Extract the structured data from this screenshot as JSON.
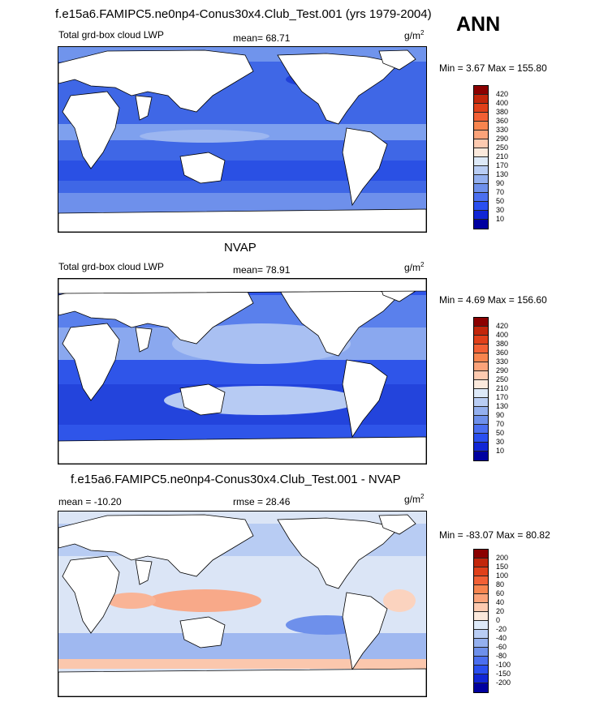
{
  "season": "ANN",
  "panels": [
    {
      "title": "f.e15a6.FAMIPC5.ne0np4-Conus30x4.Club_Test.001 (yrs 1979-2004)",
      "left_label": "Total grd-box cloud LWP",
      "stat_label": "mean=  68.71",
      "units": "g/m",
      "units_exp": "2",
      "minmax": "Min =   3.67 Max = 155.80",
      "colorbar_labels": [
        "420",
        "400",
        "380",
        "360",
        "330",
        "290",
        "250",
        "210",
        "170",
        "130",
        "90",
        "70",
        "50",
        "30",
        "10"
      ],
      "colorbar_colors": [
        "#8b0000",
        "#c2260b",
        "#e0401a",
        "#f26035",
        "#f7854f",
        "#fba37a",
        "#fdcab0",
        "#fbe9dc",
        "#dde9f8",
        "#b9cdf4",
        "#94b0ef",
        "#6e90eb",
        "#4b6ff0",
        "#2a4ff0",
        "#1126d6",
        "#0000a0"
      ]
    },
    {
      "title": "NVAP",
      "left_label": "Total grd-box cloud LWP",
      "stat_label": "mean=  78.91",
      "units": "g/m",
      "units_exp": "2",
      "minmax": "Min =   4.69 Max = 156.60",
      "colorbar_labels": [
        "420",
        "400",
        "380",
        "360",
        "330",
        "290",
        "250",
        "210",
        "170",
        "130",
        "90",
        "70",
        "50",
        "30",
        "10"
      ],
      "colorbar_colors": [
        "#8b0000",
        "#c2260b",
        "#e0401a",
        "#f26035",
        "#f7854f",
        "#fba37a",
        "#fdcab0",
        "#fbe9dc",
        "#dde9f8",
        "#b9cdf4",
        "#94b0ef",
        "#6e90eb",
        "#4b6ff0",
        "#2a4ff0",
        "#1126d6",
        "#0000a0"
      ]
    },
    {
      "title": "f.e15a6.FAMIPC5.ne0np4-Conus30x4.Club_Test.001 - NVAP",
      "left_label": "mean = -10.20",
      "stat_label": "rmse =  28.46",
      "units": "g/m",
      "units_exp": "2",
      "minmax": "Min = -83.07 Max =  80.82",
      "colorbar_labels": [
        "200",
        "150",
        "100",
        "80",
        "60",
        "40",
        "20",
        "0",
        "-20",
        "-40",
        "-60",
        "-80",
        "-100",
        "-150",
        "-200"
      ],
      "colorbar_colors": [
        "#8b0000",
        "#c2260b",
        "#e0401a",
        "#f26035",
        "#f7854f",
        "#fba37a",
        "#fdcab0",
        "#fbe9dc",
        "#dde9f8",
        "#b9cdf4",
        "#94b0ef",
        "#6e90eb",
        "#4b6ff0",
        "#2a4ff0",
        "#1126d6",
        "#0000a0"
      ]
    }
  ],
  "colors": {
    "ocean_p1": "#4a72e6",
    "ocean_p2": "#3158e8",
    "ocean_p3": "#cdd9f2",
    "land": "#ffffff"
  }
}
